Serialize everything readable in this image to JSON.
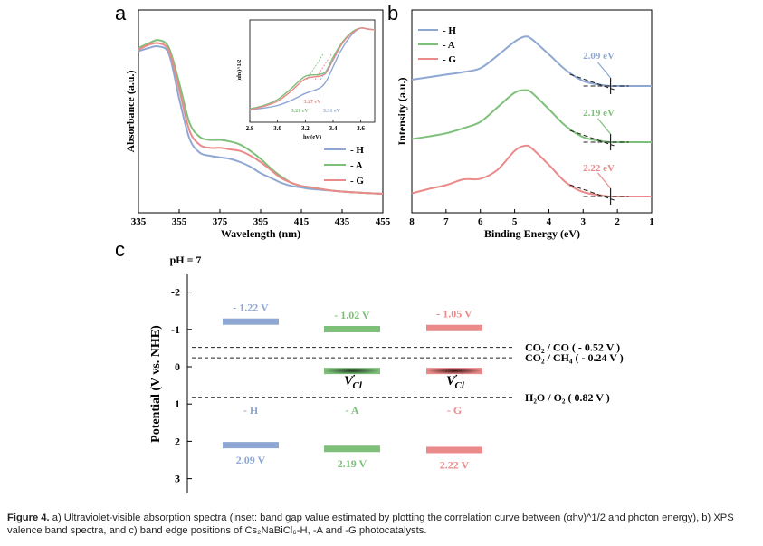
{
  "panel_labels": {
    "a": "a",
    "b": "b",
    "c": "c"
  },
  "colors": {
    "H": "#8fa8d3",
    "A": "#7ec07a",
    "G": "#eb8a8a"
  },
  "caption": {
    "prefix": "Figure 4.",
    "text": "a) Ultraviolet-visible absorption spectra (inset: band gap value estimated by plotting the correlation curve between (αhν)^1/2 and photon energy), b) XPS valence band spectra, and c) band edge positions of Cs₂NaBiCl₆-H, -A and -G photocatalysts."
  },
  "chart_data": [
    {
      "id": "a",
      "type": "line",
      "xlabel": "Wavelength (nm)",
      "ylabel": "Absorbance (a.u.)",
      "xlim": [
        335,
        455
      ],
      "xticks": [
        335,
        355,
        375,
        395,
        415,
        435,
        455
      ],
      "legend": [
        "- H",
        "- A",
        "- G"
      ],
      "legend_position": "bottom-right",
      "series": [
        {
          "name": "- H",
          "x": [
            335,
            340,
            345,
            350,
            355,
            360,
            365,
            370,
            375,
            380,
            385,
            390,
            395,
            400,
            405,
            410,
            415,
            420,
            430,
            440,
            455
          ],
          "y": [
            0.9,
            0.92,
            0.93,
            0.88,
            0.6,
            0.35,
            0.26,
            0.24,
            0.23,
            0.22,
            0.2,
            0.17,
            0.13,
            0.1,
            0.07,
            0.05,
            0.04,
            0.03,
            0.02,
            0.01,
            0.0
          ]
        },
        {
          "name": "- A",
          "x": [
            335,
            340,
            345,
            350,
            355,
            360,
            365,
            370,
            375,
            380,
            385,
            390,
            395,
            400,
            405,
            410,
            415,
            420,
            430,
            440,
            455
          ],
          "y": [
            0.92,
            0.95,
            0.97,
            0.92,
            0.7,
            0.45,
            0.36,
            0.34,
            0.34,
            0.33,
            0.31,
            0.27,
            0.22,
            0.16,
            0.11,
            0.07,
            0.05,
            0.04,
            0.02,
            0.01,
            0.0
          ]
        },
        {
          "name": "- G",
          "x": [
            335,
            340,
            345,
            350,
            355,
            360,
            365,
            370,
            375,
            380,
            385,
            390,
            395,
            400,
            405,
            410,
            415,
            420,
            430,
            440,
            455
          ],
          "y": [
            0.91,
            0.94,
            0.95,
            0.9,
            0.66,
            0.4,
            0.31,
            0.29,
            0.29,
            0.28,
            0.27,
            0.24,
            0.2,
            0.15,
            0.1,
            0.07,
            0.05,
            0.04,
            0.02,
            0.01,
            0.0
          ]
        }
      ],
      "inset": {
        "xlabel": "hν (eV)",
        "ylabel": "(αhν)^1/2",
        "xlim": [
          2.8,
          3.7
        ],
        "xticks": [
          2.8,
          3.0,
          3.2,
          3.4,
          3.6
        ],
        "annotations": [
          "3.21 eV",
          "3.27 eV",
          "3.31 eV"
        ],
        "series": [
          {
            "name": "- H",
            "x": [
              2.8,
              2.9,
              3.0,
              3.1,
              3.2,
              3.3,
              3.35,
              3.4,
              3.45,
              3.5,
              3.55,
              3.6,
              3.65,
              3.7
            ],
            "y": [
              0.05,
              0.07,
              0.1,
              0.16,
              0.24,
              0.3,
              0.38,
              0.55,
              0.72,
              0.85,
              0.95,
              1.0,
              0.99,
              0.98
            ]
          },
          {
            "name": "- A",
            "x": [
              2.8,
              2.9,
              3.0,
              3.1,
              3.2,
              3.3,
              3.35,
              3.4,
              3.45,
              3.5,
              3.55,
              3.6,
              3.65,
              3.7
            ],
            "y": [
              0.06,
              0.1,
              0.17,
              0.3,
              0.44,
              0.46,
              0.5,
              0.66,
              0.8,
              0.9,
              0.97,
              1.0,
              0.99,
              0.98
            ]
          },
          {
            "name": "- G",
            "x": [
              2.8,
              2.9,
              3.0,
              3.1,
              3.2,
              3.3,
              3.35,
              3.4,
              3.45,
              3.5,
              3.55,
              3.6,
              3.65,
              3.7
            ],
            "y": [
              0.05,
              0.09,
              0.15,
              0.27,
              0.41,
              0.44,
              0.48,
              0.63,
              0.78,
              0.89,
              0.96,
              1.0,
              0.99,
              0.98
            ]
          }
        ]
      }
    },
    {
      "id": "b",
      "type": "line",
      "xlabel": "Binding Energy (eV)",
      "ylabel": "Intensity (a.u.)",
      "xlim": [
        8,
        1
      ],
      "xticks": [
        8,
        7,
        6,
        5,
        4,
        3,
        2,
        1
      ],
      "legend": [
        "- H",
        "- A",
        "- G"
      ],
      "legend_position": "top-left",
      "annotations": [
        "2.09 eV",
        "2.19 eV",
        "2.22 eV"
      ],
      "series": [
        {
          "name": "- H",
          "offset": 2.0,
          "x": [
            8,
            7.5,
            7,
            6.5,
            6,
            5.5,
            5,
            4.7,
            4.5,
            4,
            3.5,
            3,
            2.5,
            2.2,
            2,
            1.5,
            1
          ],
          "y": [
            0.1,
            0.14,
            0.18,
            0.22,
            0.28,
            0.48,
            0.7,
            0.78,
            0.74,
            0.5,
            0.25,
            0.08,
            0.02,
            0.0,
            0.0,
            0.0,
            0.0
          ]
        },
        {
          "name": "- A",
          "offset": 1.0,
          "x": [
            8,
            7.5,
            7,
            6.5,
            6,
            5.5,
            5,
            4.7,
            4.5,
            4,
            3.5,
            3,
            2.5,
            2.2,
            2,
            1.5,
            1
          ],
          "y": [
            0.05,
            0.09,
            0.14,
            0.22,
            0.32,
            0.55,
            0.78,
            0.82,
            0.78,
            0.52,
            0.25,
            0.08,
            0.02,
            0.0,
            0.0,
            0.0,
            0.0
          ]
        },
        {
          "name": "- G",
          "offset": 0.0,
          "x": [
            8,
            7.5,
            7,
            6.5,
            6,
            5.5,
            5,
            4.7,
            4.5,
            4,
            3.5,
            3,
            2.5,
            2.2,
            2,
            1.5,
            1
          ],
          "y": [
            0.05,
            0.12,
            0.18,
            0.27,
            0.28,
            0.42,
            0.72,
            0.8,
            0.76,
            0.5,
            0.22,
            0.07,
            0.02,
            0.0,
            0.0,
            0.0,
            0.0
          ]
        }
      ]
    },
    {
      "id": "c",
      "type": "bar",
      "title": "pH = 7",
      "ylabel": "Potential (V vs. NHE)",
      "ylim": [
        -2.3,
        3.3
      ],
      "yticks": [
        -2,
        -1,
        0,
        1,
        2,
        3
      ],
      "categories": [
        "- H",
        "- A",
        "- G"
      ],
      "cb": [
        -1.22,
        -1.02,
        -1.05
      ],
      "cb_labels": [
        "- 1.22 V",
        "- 1.02 V",
        "- 1.05 V"
      ],
      "vb": [
        2.09,
        2.19,
        2.22
      ],
      "vb_labels": [
        "2.09 V",
        "2.19 V",
        "2.22 V"
      ],
      "defect_level": 0.1,
      "defect_label": "V",
      "defect_superscript": "·",
      "defect_subscript": "Cl",
      "reference_lines": [
        {
          "value": -0.52,
          "label": "CO₂ / CO  ( - 0.52 V )"
        },
        {
          "value": -0.24,
          "label": "CO₂ / CH₄ ( - 0.24 V )"
        },
        {
          "value": 0.82,
          "label": "H₂O / O₂    ( 0.82 V )"
        }
      ]
    }
  ]
}
